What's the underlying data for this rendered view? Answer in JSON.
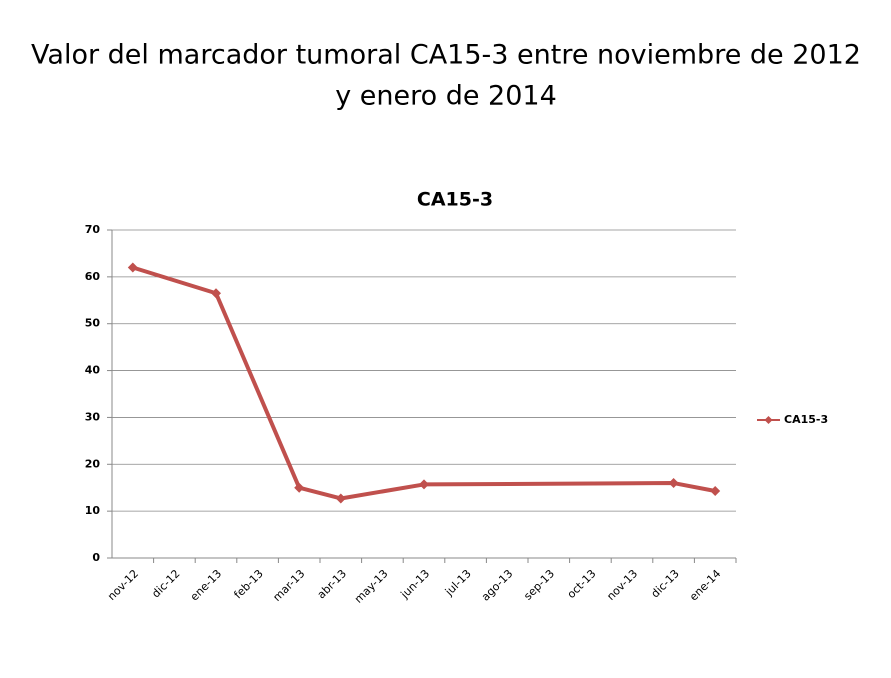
{
  "header": {
    "title": [
      "Valor del marcador tumoral CA15-3 entre noviembre de 2012",
      "y enero de 2014"
    ]
  },
  "chart_data": {
    "type": "line",
    "title": "CA15-3",
    "categories": [
      "nov-12",
      "dic-12",
      "ene-13",
      "feb-13",
      "mar-13",
      "abr-13",
      "may-13",
      "jun-13",
      "jul-13",
      "ago-13",
      "sep-13",
      "oct-13",
      "nov-13",
      "dic-13",
      "ene-14"
    ],
    "series": [
      {
        "name": "CA15-3",
        "color": "#c0504d",
        "x": [
          "nov-12",
          "ene-13",
          "mar-13",
          "abr-13",
          "jun-13",
          "dic-13",
          "ene-14"
        ],
        "values": [
          62,
          56.5,
          15,
          12.7,
          15.7,
          16,
          14.3
        ]
      }
    ],
    "ylim": [
      0,
      70
    ],
    "yticks": [
      0,
      10,
      20,
      30,
      40,
      50,
      60,
      70
    ],
    "grid": true,
    "legend": "right"
  }
}
